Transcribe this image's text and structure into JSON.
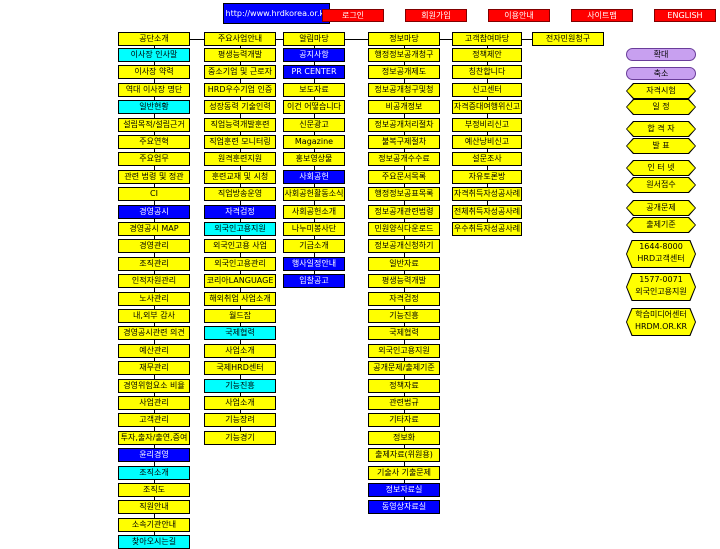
{
  "url_label": "http://www.hrdkorea.or.kr",
  "top_links": [
    "로그인",
    "회원가입",
    "이용안내",
    "사이트맵",
    "ENGLISH"
  ],
  "columns": [
    {
      "header": "공단소개",
      "items": [
        {
          "t": "이사장 인사말",
          "c": "c"
        },
        {
          "t": "이사장 약력",
          "c": "y"
        },
        {
          "t": "역대 이사장 명단",
          "c": "y"
        },
        {
          "t": "일반현황",
          "c": "c"
        },
        {
          "t": "설립목적/설립근거",
          "c": "y"
        },
        {
          "t": "주요연혁",
          "c": "y"
        },
        {
          "t": "주요업무",
          "c": "y"
        },
        {
          "t": "관련 법령 및 정관",
          "c": "y"
        },
        {
          "t": "CI",
          "c": "y"
        },
        {
          "t": "경영공시",
          "c": "b"
        },
        {
          "t": "경영공시 MAP",
          "c": "y"
        },
        {
          "t": "경영관리",
          "c": "y"
        },
        {
          "t": "조직관리",
          "c": "y"
        },
        {
          "t": "인적자원관리",
          "c": "y"
        },
        {
          "t": "노사관리",
          "c": "y"
        },
        {
          "t": "내,외부 감사",
          "c": "y"
        },
        {
          "t": "경영공시관련 의견",
          "c": "y"
        },
        {
          "t": "예산관리",
          "c": "y"
        },
        {
          "t": "재무관리",
          "c": "y"
        },
        {
          "t": "경영위험요소 비율",
          "c": "y"
        },
        {
          "t": "사업관리",
          "c": "y"
        },
        {
          "t": "고객관리",
          "c": "y"
        },
        {
          "t": "투자,출자/출연,증여",
          "c": "y"
        },
        {
          "t": "윤리경영",
          "c": "b"
        },
        {
          "t": "조직소개",
          "c": "c"
        },
        {
          "t": "조직도",
          "c": "y"
        },
        {
          "t": "직원안내",
          "c": "y"
        },
        {
          "t": "소속기관안내",
          "c": "y"
        },
        {
          "t": "찾아오시는길",
          "c": "c"
        }
      ]
    },
    {
      "header": "주요사업안내",
      "items": [
        {
          "t": "평생능력개발",
          "c": "y"
        },
        {
          "t": "중소기업 및 근로자",
          "c": "y"
        },
        {
          "t": "HRD우수기업 인증",
          "c": "y"
        },
        {
          "t": "성장동력 기술인력",
          "c": "y"
        },
        {
          "t": "직업능력개발훈련",
          "c": "y"
        },
        {
          "t": "직업훈련 모니터링",
          "c": "y"
        },
        {
          "t": "원격훈련지원",
          "c": "y"
        },
        {
          "t": "훈련교재 및 시청",
          "c": "y"
        },
        {
          "t": "직업방송운영",
          "c": "y"
        },
        {
          "t": "자격검정",
          "c": "b"
        },
        {
          "t": "외국인고용지원",
          "c": "c"
        },
        {
          "t": "외국인고용 사업",
          "c": "y"
        },
        {
          "t": "외국인고용관리",
          "c": "y"
        },
        {
          "t": "코리아LANGUAGE",
          "c": "y"
        },
        {
          "t": "해외취업 사업소개",
          "c": "y"
        },
        {
          "t": "월드잡",
          "c": "y"
        },
        {
          "t": "국제협력",
          "c": "c"
        },
        {
          "t": "사업소개",
          "c": "y"
        },
        {
          "t": "국제HRD센터",
          "c": "y"
        },
        {
          "t": "기능진흥",
          "c": "c"
        },
        {
          "t": "사업소개",
          "c": "y"
        },
        {
          "t": "기능장려",
          "c": "y"
        },
        {
          "t": "기능경기",
          "c": "y"
        }
      ]
    },
    {
      "header": "알림마당",
      "items": [
        {
          "t": "공지사항",
          "c": "b"
        },
        {
          "t": "PR CENTER",
          "c": "b"
        },
        {
          "t": "보도자료",
          "c": "y"
        },
        {
          "t": "이건 어떻습니다",
          "c": "y"
        },
        {
          "t": "신문광고",
          "c": "y"
        },
        {
          "t": "Magazine",
          "c": "y"
        },
        {
          "t": "홍보영상물",
          "c": "y"
        },
        {
          "t": "사회공헌",
          "c": "b"
        },
        {
          "t": "사회공헌활동소식",
          "c": "y"
        },
        {
          "t": "사회공헌소개",
          "c": "y"
        },
        {
          "t": "나누미봉사단",
          "c": "y"
        },
        {
          "t": "기금소개",
          "c": "y"
        },
        {
          "t": "행사일정안내",
          "c": "b"
        },
        {
          "t": "입찰공고",
          "c": "b"
        }
      ]
    },
    {
      "header": "정보마당",
      "items": [
        {
          "t": "행정정보공개청구",
          "c": "y"
        },
        {
          "t": "정보공개제도",
          "c": "y"
        },
        {
          "t": "정보공개청구및청",
          "c": "y"
        },
        {
          "t": "비공개정보",
          "c": "y"
        },
        {
          "t": "정보공개처리절차",
          "c": "y"
        },
        {
          "t": "불복구제절차",
          "c": "y"
        },
        {
          "t": "정보공개수수료",
          "c": "y"
        },
        {
          "t": "주요문서목록",
          "c": "y"
        },
        {
          "t": "행정정보공표목록",
          "c": "y"
        },
        {
          "t": "정보공개관련법령",
          "c": "y"
        },
        {
          "t": "민원양식다운로드",
          "c": "y"
        },
        {
          "t": "정보공개신청하기",
          "c": "y"
        },
        {
          "t": "일반자료",
          "c": "y"
        },
        {
          "t": "평생능력개발",
          "c": "y"
        },
        {
          "t": "자격검정",
          "c": "y"
        },
        {
          "t": "기능진흥",
          "c": "y"
        },
        {
          "t": "국제협력",
          "c": "y"
        },
        {
          "t": "외국인고용지원",
          "c": "y"
        },
        {
          "t": "공개문제/출제기준",
          "c": "y"
        },
        {
          "t": "정책자료",
          "c": "y"
        },
        {
          "t": "관련법규",
          "c": "y"
        },
        {
          "t": "기타자료",
          "c": "y"
        },
        {
          "t": "정보화",
          "c": "y"
        },
        {
          "t": "출제자료(위원용)",
          "c": "y"
        },
        {
          "t": "기술사 기출문제",
          "c": "y"
        },
        {
          "t": "정보자료실",
          "c": "b"
        },
        {
          "t": "동영상자료실",
          "c": "b"
        }
      ]
    },
    {
      "header": "고객참여마당",
      "items": [
        {
          "t": "정책제안",
          "c": "y"
        },
        {
          "t": "칭찬합니다",
          "c": "y"
        },
        {
          "t": "신고센터",
          "c": "y"
        },
        {
          "t": "자격증대여행위신고",
          "c": "y"
        },
        {
          "t": "부정비리신고",
          "c": "y"
        },
        {
          "t": "예산낭비신고",
          "c": "y"
        },
        {
          "t": "설문조사",
          "c": "y"
        },
        {
          "t": "자유토론방",
          "c": "y"
        },
        {
          "t": "자격취득자성공사례",
          "c": "y"
        },
        {
          "t": "전체취득자성공사례",
          "c": "y"
        },
        {
          "t": "우수취득자성공사례",
          "c": "y"
        }
      ]
    },
    {
      "header": "전자민원청구",
      "items": []
    }
  ],
  "right_panel": {
    "zoom_in": "확대",
    "zoom_out": "축소",
    "hex_items": [
      "자격시험",
      "일 정",
      "합 격 자",
      "발 표",
      "인 터 넷",
      "원서접수",
      "공개문제",
      "출제기준"
    ],
    "info": [
      {
        "line1": "1644-8000",
        "line2": "HRD고객센터"
      },
      {
        "line1": "1577-0071",
        "line2": "외국인고용지원"
      },
      {
        "line1": "학습미디어센터",
        "line2": "HRDM.OR.KR"
      }
    ]
  },
  "colors": {
    "yellow": "#ffff00",
    "cyan": "#00ffff",
    "blue": "#0000ff",
    "red": "#ff0000",
    "purple": "#c8a0f0"
  }
}
